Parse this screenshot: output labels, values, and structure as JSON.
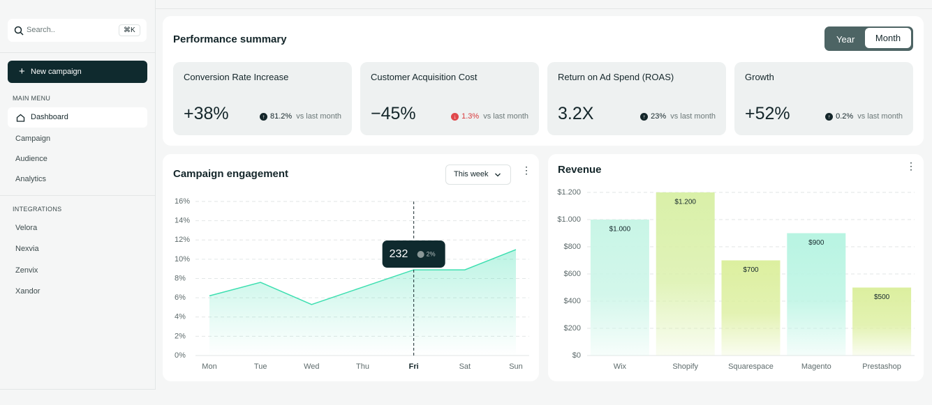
{
  "sidebar": {
    "search_placeholder": "Search..",
    "shortcut": "⌘K",
    "new_campaign": "New campaign",
    "main_menu_title": "MAIN MENU",
    "main_menu": [
      "Dashboard",
      "Campaign",
      "Audience",
      "Analytics"
    ],
    "integrations_title": "INTEGRATIONS",
    "integrations": [
      "Velora",
      "Nexvia",
      "Zenvix",
      "Xandor"
    ]
  },
  "summary": {
    "title": "Performance summary",
    "toggle": [
      "Year",
      "Month"
    ],
    "cards": [
      {
        "label": "Conversion Rate Increase",
        "value": "+38%",
        "change": "81.2%",
        "direction": "up",
        "compare": "vs last month"
      },
      {
        "label": "Customer Acquisition Cost",
        "value": "−45%",
        "change": "1.3%",
        "direction": "down",
        "compare": "vs last month"
      },
      {
        "label": "Return on Ad Spend (ROAS)",
        "value": "3.2X",
        "change": "23%",
        "direction": "up",
        "compare": "vs last month"
      },
      {
        "label": "Growth",
        "value": "+52%",
        "change": "0.2%",
        "direction": "up",
        "compare": "vs last month"
      }
    ]
  },
  "engagement_panel": {
    "period": "This week"
  },
  "chart_data": [
    {
      "type": "line",
      "title": "Campaign engagement",
      "categories": [
        "Mon",
        "Tue",
        "Wed",
        "Thu",
        "Fri",
        "Sat",
        "Sun"
      ],
      "values": [
        6.2,
        7.6,
        5.3,
        7.1,
        8.9,
        8.9,
        11.0
      ],
      "color": "#3ddfb0",
      "ylim": [
        0,
        16
      ],
      "yticks": [
        {
          "value": 0,
          "label": "0%"
        },
        {
          "value": 2,
          "label": "2%"
        },
        {
          "value": 4,
          "label": "4%"
        },
        {
          "value": 6,
          "label": "6%"
        },
        {
          "value": 8,
          "label": "8%"
        },
        {
          "value": 10,
          "label": "10%"
        },
        {
          "value": 12,
          "label": "12%"
        },
        {
          "value": 14,
          "label": "14%"
        },
        {
          "value": 16,
          "label": "16%"
        }
      ],
      "grid": true,
      "tooltip": {
        "category": "Fri",
        "value": 232,
        "change": "2%"
      }
    },
    {
      "type": "bar",
      "title": "Revenue",
      "categories": [
        "Wix",
        "Shopify",
        "Squarespace",
        "Magento",
        "Prestashop"
      ],
      "values": [
        1000,
        1200,
        700,
        900,
        500
      ],
      "value_labels": [
        "$1.000",
        "$1.200",
        "$700",
        "$900",
        "$500"
      ],
      "colors": [
        "#c8f5e6",
        "#d9f0a8",
        "#dcef9f",
        "#b8f4e2",
        "#dcef9f"
      ],
      "ylim": [
        0,
        1200
      ],
      "yticks": [
        {
          "value": 0,
          "label": "$0"
        },
        {
          "value": 200,
          "label": "$200"
        },
        {
          "value": 400,
          "label": "$400"
        },
        {
          "value": 600,
          "label": "$600"
        },
        {
          "value": 800,
          "label": "$800"
        },
        {
          "value": 1000,
          "label": "$1.000"
        },
        {
          "value": 1200,
          "label": "$1.200"
        }
      ],
      "grid": true
    }
  ]
}
